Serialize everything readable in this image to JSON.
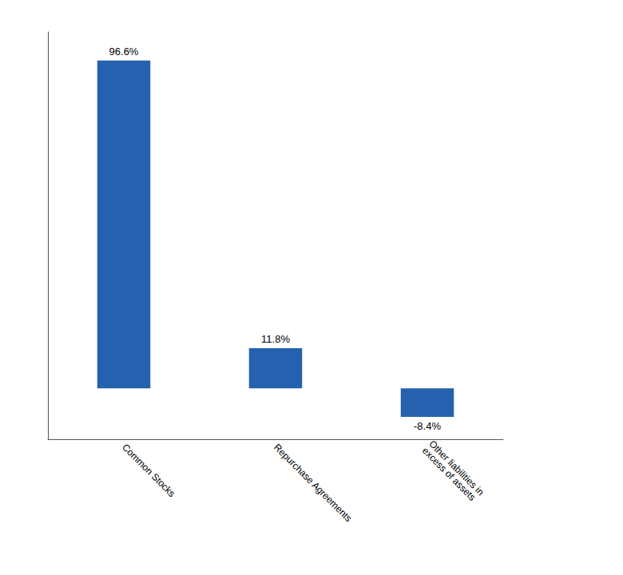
{
  "chart_data": {
    "type": "bar",
    "categories": [
      "Common Stocks",
      "Repurchase Agreements",
      "Other liabilities in\nexcess of assets"
    ],
    "values": [
      96.6,
      11.8,
      -8.4
    ],
    "value_labels": [
      "96.6%",
      "11.8%",
      "-8.4%"
    ],
    "data_labels": true,
    "color": "#2561AE",
    "ylim": [
      -15,
      105
    ],
    "tick_labels": "x",
    "grid": false
  }
}
